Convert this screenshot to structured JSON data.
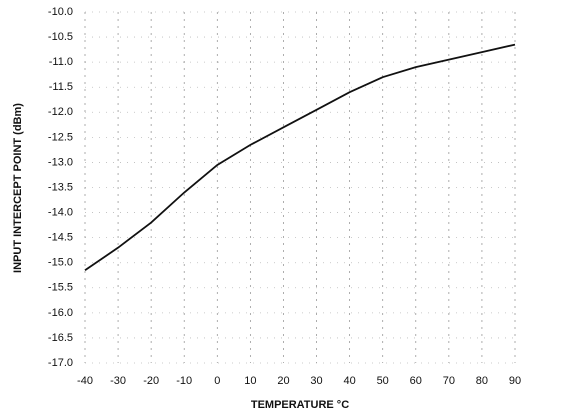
{
  "chart_data": {
    "type": "line",
    "xlabel": "TEMPERATURE °C",
    "ylabel": "INPUT INTERCEPT POINT (dBm)",
    "x": [
      -40,
      -30,
      -20,
      -10,
      0,
      10,
      20,
      30,
      40,
      50,
      60,
      70,
      80,
      90
    ],
    "values": [
      -15.15,
      -14.7,
      -14.2,
      -13.6,
      -13.05,
      -12.65,
      -12.3,
      -11.95,
      -11.6,
      -11.3,
      -11.1,
      -10.95,
      -10.8,
      -10.65
    ],
    "color": "#111111",
    "xlim": [
      -40,
      90
    ],
    "xticks": [
      -40,
      -30,
      -20,
      -10,
      0,
      10,
      20,
      30,
      40,
      50,
      60,
      70,
      80,
      90
    ],
    "ylim": [
      -17,
      -10
    ],
    "yticks": [
      {
        "value": -10,
        "label": "-10.0"
      },
      -10.5,
      {
        "value": -11,
        "label": "-11.0"
      },
      -11.5,
      {
        "value": -12,
        "label": "-12.0"
      },
      -12.5,
      {
        "value": -13,
        "label": "-13.0"
      },
      -13.5,
      {
        "value": -14,
        "label": "-14.0"
      },
      -14.5,
      {
        "value": -15,
        "label": "-15.0"
      },
      -15.5,
      {
        "value": -16,
        "label": "-16.0"
      },
      -16.5,
      {
        "value": -17,
        "label": "-17.0"
      }
    ],
    "grid": true
  }
}
